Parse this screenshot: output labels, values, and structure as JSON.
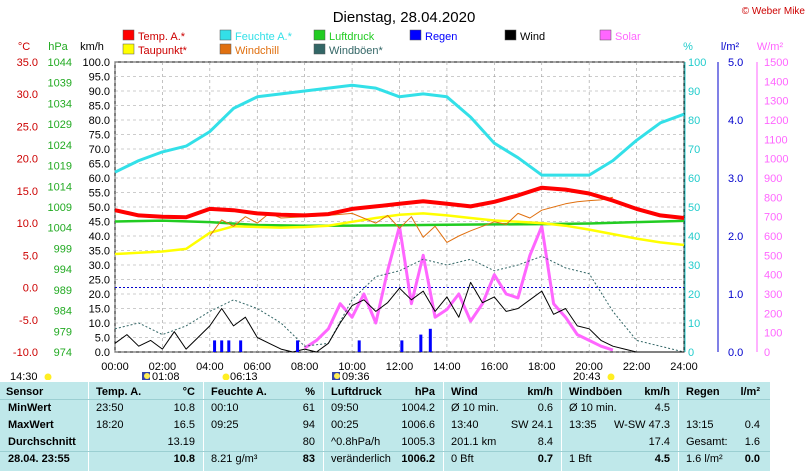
{
  "chart_data": {
    "type": "line",
    "title": "Dienstag, 28.04.2020",
    "copyright": "© Weber Mike",
    "x_range": [
      0,
      24
    ],
    "x_tick_labels": [
      "00:00",
      "02:00",
      "04:00",
      "06:00",
      "08:00",
      "10:00",
      "12:00",
      "14:00",
      "16:00",
      "18:00",
      "20:00",
      "22:00",
      "24:00"
    ],
    "markers": [
      {
        "label": "14:30",
        "icon": "sunrise-icon"
      },
      {
        "label": "01:08",
        "icon": "moon-icon"
      },
      {
        "label": "06:13",
        "icon": "sun-icon"
      },
      {
        "label": "09:36",
        "icon": "moon-icon"
      },
      {
        "label": "20:43",
        "icon": "sunset-icon"
      }
    ],
    "axes": {
      "temp": {
        "unit": "°C",
        "min": -10,
        "max": 35,
        "ticks": [
          "35.0",
          "30.0",
          "25.0",
          "20.0",
          "15.0",
          "10.0",
          "5.0",
          "0.0",
          "-5.0",
          "-10.0"
        ]
      },
      "pressure": {
        "unit": "hPa",
        "ticks": [
          "1044",
          "1039",
          "1034",
          "1029",
          "1024",
          "1019",
          "1014",
          "1009",
          "1004",
          "999",
          "994",
          "989",
          "984",
          "979",
          "974"
        ]
      },
      "wind": {
        "unit": "km/h",
        "min": 0,
        "max": 100,
        "ticks": [
          "100.0",
          "95.0",
          "90.0",
          "85.0",
          "80.0",
          "75.0",
          "70.0",
          "65.0",
          "60.0",
          "55.0",
          "50.0",
          "45.0",
          "40.0",
          "35.0",
          "30.0",
          "25.0",
          "20.0",
          "15.0",
          "10.0",
          "5.0",
          "0.0"
        ]
      },
      "humidity": {
        "unit": "%",
        "ticks": [
          "100",
          "90",
          "80",
          "70",
          "60",
          "50",
          "40",
          "30",
          "20",
          "10",
          "0"
        ]
      },
      "rain": {
        "unit": "l/m²",
        "ticks": [
          "5.0",
          "4.0",
          "3.0",
          "2.0",
          "1.0",
          "0.0"
        ]
      },
      "solar": {
        "unit": "W/m²",
        "ticks": [
          "1500",
          "1400",
          "1300",
          "1200",
          "1100",
          "1000",
          "900",
          "800",
          "700",
          "600",
          "500",
          "400",
          "300",
          "200",
          "100",
          "0"
        ]
      }
    },
    "legend": [
      {
        "name": "Temp. A.*",
        "color": "#ff0000"
      },
      {
        "name": "Feuchte A.*",
        "color": "#33e0e8"
      },
      {
        "name": "Luftdruck",
        "color": "#22cc22"
      },
      {
        "name": "Regen",
        "color": "#0000ff"
      },
      {
        "name": "Wind",
        "color": "#000000"
      },
      {
        "name": "Solar",
        "color": "#ff66ff"
      },
      {
        "name": "Taupunkt*",
        "color": "#ffff00"
      },
      {
        "name": "Windchill",
        "color": "#e07010"
      },
      {
        "name": "Windböen*",
        "color": "#336666"
      }
    ],
    "series": [
      {
        "name": "Temp. A.*",
        "axis": "temp",
        "x": [
          0,
          1,
          2,
          3,
          4,
          5,
          6,
          7,
          8,
          9,
          10,
          11,
          12,
          13,
          14,
          15,
          16,
          17,
          18,
          19,
          20,
          21,
          22,
          23,
          24
        ],
        "values": [
          12.0,
          11.2,
          11.0,
          10.9,
          12.2,
          12.0,
          11.5,
          11.3,
          11.2,
          11.4,
          12.2,
          12.6,
          13.0,
          13.4,
          13.0,
          12.6,
          13.3,
          14.3,
          15.5,
          15.2,
          14.6,
          13.5,
          12.2,
          11.2,
          10.8
        ]
      },
      {
        "name": "Feuchte A.*",
        "axis": "humidity",
        "x": [
          0,
          1,
          2,
          3,
          4,
          5,
          6,
          7,
          8,
          9,
          10,
          11,
          12,
          13,
          14,
          15,
          16,
          17,
          18,
          19,
          20,
          21,
          22,
          23,
          24
        ],
        "values": [
          62,
          66,
          69,
          71,
          76,
          84,
          88,
          89,
          90,
          91,
          92,
          91,
          88,
          89,
          88,
          81,
          72,
          67,
          61,
          61,
          61,
          66,
          73,
          79,
          82
        ]
      },
      {
        "name": "Luftdruck",
        "axis": "wind",
        "x": [
          0,
          2,
          4,
          6,
          8,
          10,
          12,
          14,
          16,
          18,
          20,
          22,
          24
        ],
        "values": [
          45.0,
          45.3,
          44.8,
          43.8,
          43.5,
          43.6,
          43.7,
          43.9,
          44.0,
          44.1,
          44.3,
          44.8,
          45.2
        ]
      },
      {
        "name": "Taupunkt*",
        "axis": "temp",
        "x": [
          0,
          1,
          2,
          3,
          4,
          5,
          6,
          7,
          8,
          9,
          10,
          11,
          12,
          13,
          14,
          15,
          16,
          17,
          18,
          19,
          20,
          21,
          22,
          23,
          24
        ],
        "values": [
          5.2,
          5.4,
          5.6,
          6.0,
          8.5,
          9.5,
          9.4,
          9.3,
          9.4,
          9.6,
          10.2,
          10.8,
          11.3,
          11.5,
          11.2,
          10.8,
          10.4,
          10.2,
          10.0,
          9.6,
          9.0,
          8.3,
          7.6,
          7.0,
          6.6
        ]
      },
      {
        "name": "Windchill",
        "axis": "temp",
        "x": [
          4,
          4.5,
          5,
          5.5,
          6,
          6.5,
          7,
          8,
          9,
          10,
          11,
          11.5,
          12,
          12.5,
          13,
          13.5,
          14,
          14.5,
          15,
          15.5,
          16,
          16.5,
          17,
          17.5,
          18,
          18.5,
          19,
          19.5,
          20,
          20.5,
          21
        ],
        "values": [
          8.0,
          10.5,
          9.5,
          11.0,
          10.0,
          11.5,
          10.8,
          11.0,
          11.2,
          11.5,
          10.0,
          11.2,
          9.2,
          11.0,
          7.8,
          9.5,
          7.0,
          8.0,
          8.8,
          9.5,
          10.2,
          9.8,
          11.5,
          10.8,
          12.0,
          12.5,
          13.0,
          13.3,
          13.5,
          13.6,
          14.0
        ]
      },
      {
        "name": "Wind",
        "axis": "wind",
        "x": [
          0,
          0.5,
          1,
          1.5,
          2,
          2.5,
          3,
          3.5,
          4,
          4.5,
          5,
          5.5,
          6,
          6.5,
          7,
          7.5,
          8,
          8.5,
          9,
          9.5,
          10,
          10.5,
          11,
          11.5,
          12,
          12.5,
          13,
          13.5,
          14,
          14.5,
          15,
          15.5,
          16,
          16.5,
          17,
          17.5,
          18,
          18.5,
          19,
          19.5,
          20,
          20.5,
          21,
          21.5,
          22,
          24
        ],
        "values": [
          3,
          6,
          2,
          4,
          1,
          7,
          1,
          5,
          9,
          15,
          9,
          12,
          5,
          3,
          1,
          0,
          1,
          0,
          3,
          10,
          16,
          18,
          14,
          17,
          22,
          18,
          21,
          14,
          19,
          12,
          24,
          17,
          19,
          14,
          15,
          18,
          21,
          13,
          15,
          9,
          8,
          4,
          2,
          1,
          0,
          0
        ]
      },
      {
        "name": "Windböen*",
        "axis": "wind",
        "x": [
          0,
          1,
          2,
          3,
          4,
          5,
          6,
          7,
          8,
          9,
          10,
          11,
          12,
          13,
          14,
          15,
          16,
          17,
          18,
          19,
          20,
          21,
          22,
          24
        ],
        "values": [
          8,
          10,
          6,
          9,
          14,
          18,
          15,
          10,
          2,
          3,
          18,
          26,
          28,
          32,
          30,
          32,
          28,
          30,
          33,
          29,
          27,
          14,
          4,
          0
        ]
      },
      {
        "name": "Solar",
        "axis": "solar",
        "x": [
          8,
          8.5,
          9,
          9.5,
          10,
          10.5,
          11,
          11.5,
          12,
          12.5,
          13,
          13.5,
          14,
          14.5,
          15,
          15.5,
          16,
          16.5,
          17,
          17.5,
          18,
          18.5,
          19,
          19.5,
          20,
          20.5,
          21
        ],
        "values": [
          20,
          60,
          120,
          250,
          180,
          300,
          150,
          420,
          650,
          250,
          500,
          180,
          220,
          300,
          160,
          250,
          400,
          300,
          280,
          500,
          650,
          250,
          180,
          90,
          60,
          30,
          10
        ]
      }
    ],
    "rain": {
      "axis": "rain",
      "x": [
        4.2,
        4.5,
        4.8,
        5.3,
        7.7,
        10.3,
        12.1,
        12.9,
        13.3
      ],
      "values": [
        0.2,
        0.2,
        0.2,
        0.2,
        0.2,
        0.2,
        0.2,
        0.3,
        0.4
      ]
    }
  },
  "table": {
    "headers": [
      {
        "label": "Sensor",
        "unit": ""
      },
      {
        "label": "Temp. A.",
        "unit": "°C"
      },
      {
        "label": "Feuchte A.",
        "unit": "%"
      },
      {
        "label": "Luftdruck",
        "unit": "hPa"
      },
      {
        "label": "Wind",
        "unit": "km/h"
      },
      {
        "label": "Windböen",
        "unit": "km/h"
      },
      {
        "label": "Regen",
        "unit": "l/m²"
      }
    ],
    "row_labels": [
      "MinWert",
      "MaxWert",
      "Durchschnitt",
      "28.04. 23:55"
    ],
    "cells": [
      [
        [
          "23:50",
          "10.8"
        ],
        [
          "00:10",
          "61"
        ],
        [
          "09:50",
          "1004.2"
        ],
        [
          "Ø 10 min.",
          "0.6"
        ],
        [
          "Ø 10 min.",
          "4.5"
        ],
        [
          "",
          ""
        ]
      ],
      [
        [
          "18:20",
          "16.5"
        ],
        [
          "09:25",
          "94"
        ],
        [
          "00:25",
          "1006.6"
        ],
        [
          "13:40",
          "SW 24.1"
        ],
        [
          "13:35",
          "W-SW 47.3"
        ],
        [
          "13:15",
          "0.4"
        ]
      ],
      [
        [
          "",
          "13.19"
        ],
        [
          "",
          "80"
        ],
        [
          "^0.8hPa/h",
          "1005.3"
        ],
        [
          "201.1 km",
          "8.4"
        ],
        [
          "",
          "17.4"
        ],
        [
          "Gesamt:",
          "1.6"
        ]
      ],
      [
        [
          "",
          "10.8"
        ],
        [
          "8.21 g/m³",
          "83"
        ],
        [
          "veränderlich",
          "1006.2"
        ],
        [
          "0 Bft",
          "0.7"
        ],
        [
          "1 Bft",
          "4.5"
        ],
        [
          "1.6 l/m²",
          "0.0"
        ]
      ]
    ]
  }
}
